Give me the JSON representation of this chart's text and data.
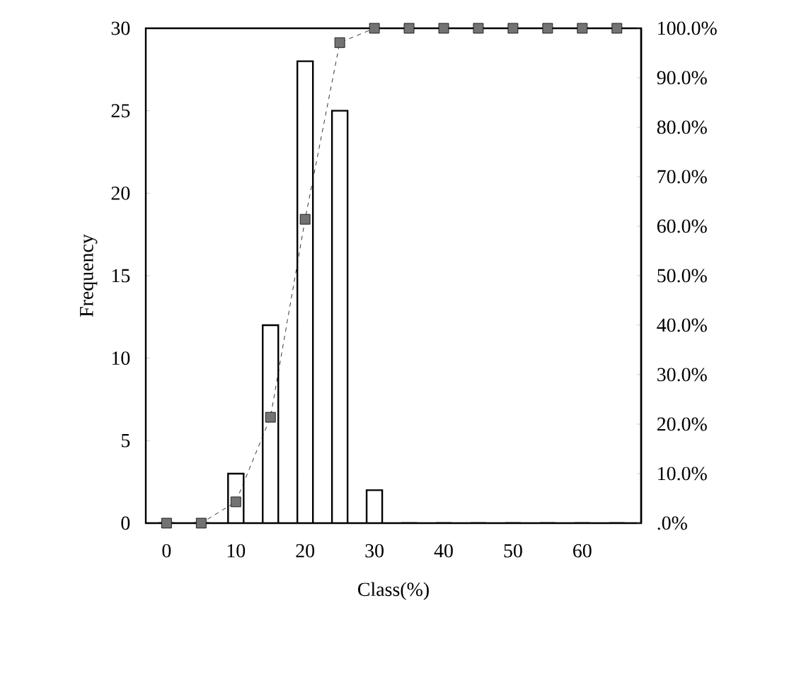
{
  "chart_data": {
    "type": "bar",
    "xlabel": "Class(%)",
    "ylabel": "Frequency",
    "categories": [
      "0",
      null,
      "10",
      null,
      "20",
      null,
      "30",
      null,
      "40",
      null,
      "50",
      null,
      "60",
      null
    ],
    "series": [
      {
        "color": "#ffffff",
        "values": [
          0,
          0,
          3,
          12,
          28,
          25,
          2,
          0,
          0,
          0,
          0,
          0,
          0,
          0
        ]
      },
      {
        "type": "line",
        "axis": "y2",
        "color": "#000000",
        "marker": "square",
        "line_style": "dashed",
        "values": [
          0,
          0,
          4.3,
          21.4,
          61.4,
          97.1,
          100,
          100,
          100,
          100,
          100,
          100,
          100,
          100
        ]
      }
    ],
    "ylim": [
      0,
      30
    ],
    "yticks": [
      0,
      5,
      10,
      15,
      20,
      25,
      30
    ],
    "y2lim": [
      0,
      100
    ],
    "y2ticks": [
      {
        "value": 0,
        "label": ".0%"
      },
      {
        "value": 10,
        "label": "10.0%"
      },
      {
        "value": 20,
        "label": "20.0%"
      },
      {
        "value": 30,
        "label": "30.0%"
      },
      {
        "value": 40,
        "label": "40.0%"
      },
      {
        "value": 50,
        "label": "50.0%"
      },
      {
        "value": 60,
        "label": "60.0%"
      },
      {
        "value": 70,
        "label": "70.0%"
      },
      {
        "value": 80,
        "label": "80.0%"
      },
      {
        "value": 90,
        "label": "90.0%"
      },
      {
        "value": 100,
        "label": "100.0%"
      }
    ]
  }
}
